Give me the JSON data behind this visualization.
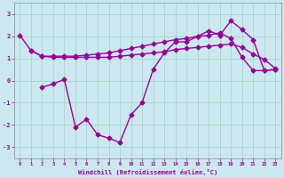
{
  "xlabel": "Windchill (Refroidissement éolien,°C)",
  "bg_color": "#cbe8f0",
  "grid_color": "#a8d5c8",
  "line_color": "#990099",
  "xlim": [
    -0.5,
    23.5
  ],
  "ylim": [
    -3.5,
    3.5
  ],
  "xticks": [
    0,
    1,
    2,
    3,
    4,
    5,
    6,
    7,
    8,
    9,
    10,
    11,
    12,
    13,
    14,
    15,
    16,
    17,
    18,
    19,
    20,
    21,
    22,
    23
  ],
  "yticks": [
    -3,
    -2,
    -1,
    0,
    1,
    2,
    3
  ],
  "line1_x": [
    0,
    1,
    2,
    3,
    4,
    5,
    6,
    7,
    8,
    9,
    10,
    11,
    12,
    13,
    14,
    15,
    16,
    17,
    18,
    19,
    20,
    21,
    22,
    23
  ],
  "line1_y": [
    2.05,
    1.35,
    1.1,
    1.1,
    1.1,
    1.1,
    1.15,
    1.2,
    1.25,
    1.35,
    1.45,
    1.55,
    1.65,
    1.75,
    1.85,
    1.9,
    2.0,
    2.05,
    2.15,
    1.9,
    1.05,
    0.45,
    0.45,
    0.5
  ],
  "line2_x": [
    1,
    2,
    3,
    4,
    5,
    6,
    7,
    8,
    9,
    10,
    11,
    12,
    13,
    14,
    15,
    16,
    17,
    18,
    19,
    20,
    21,
    22,
    23
  ],
  "line2_y": [
    1.35,
    1.1,
    1.05,
    1.05,
    1.05,
    1.05,
    1.05,
    1.05,
    1.1,
    1.15,
    1.2,
    1.25,
    1.3,
    1.4,
    1.45,
    1.5,
    1.55,
    1.6,
    1.65,
    1.5,
    1.2,
    0.95,
    0.55
  ],
  "line3_x": [
    2,
    3,
    4,
    5,
    6,
    7,
    8,
    9,
    10,
    11,
    12,
    13,
    14,
    15,
    16,
    17,
    18,
    19,
    20,
    21,
    22,
    23
  ],
  "line3_y": [
    -0.3,
    -0.15,
    0.05,
    -2.1,
    -1.75,
    -2.45,
    -2.6,
    -2.8,
    -1.55,
    -1.0,
    0.5,
    1.25,
    1.75,
    1.75,
    2.0,
    2.25,
    2.05,
    2.7,
    2.3,
    1.85,
    0.45,
    0.5
  ],
  "marker": "D",
  "marker_size": 2.5,
  "line_width": 1.0
}
